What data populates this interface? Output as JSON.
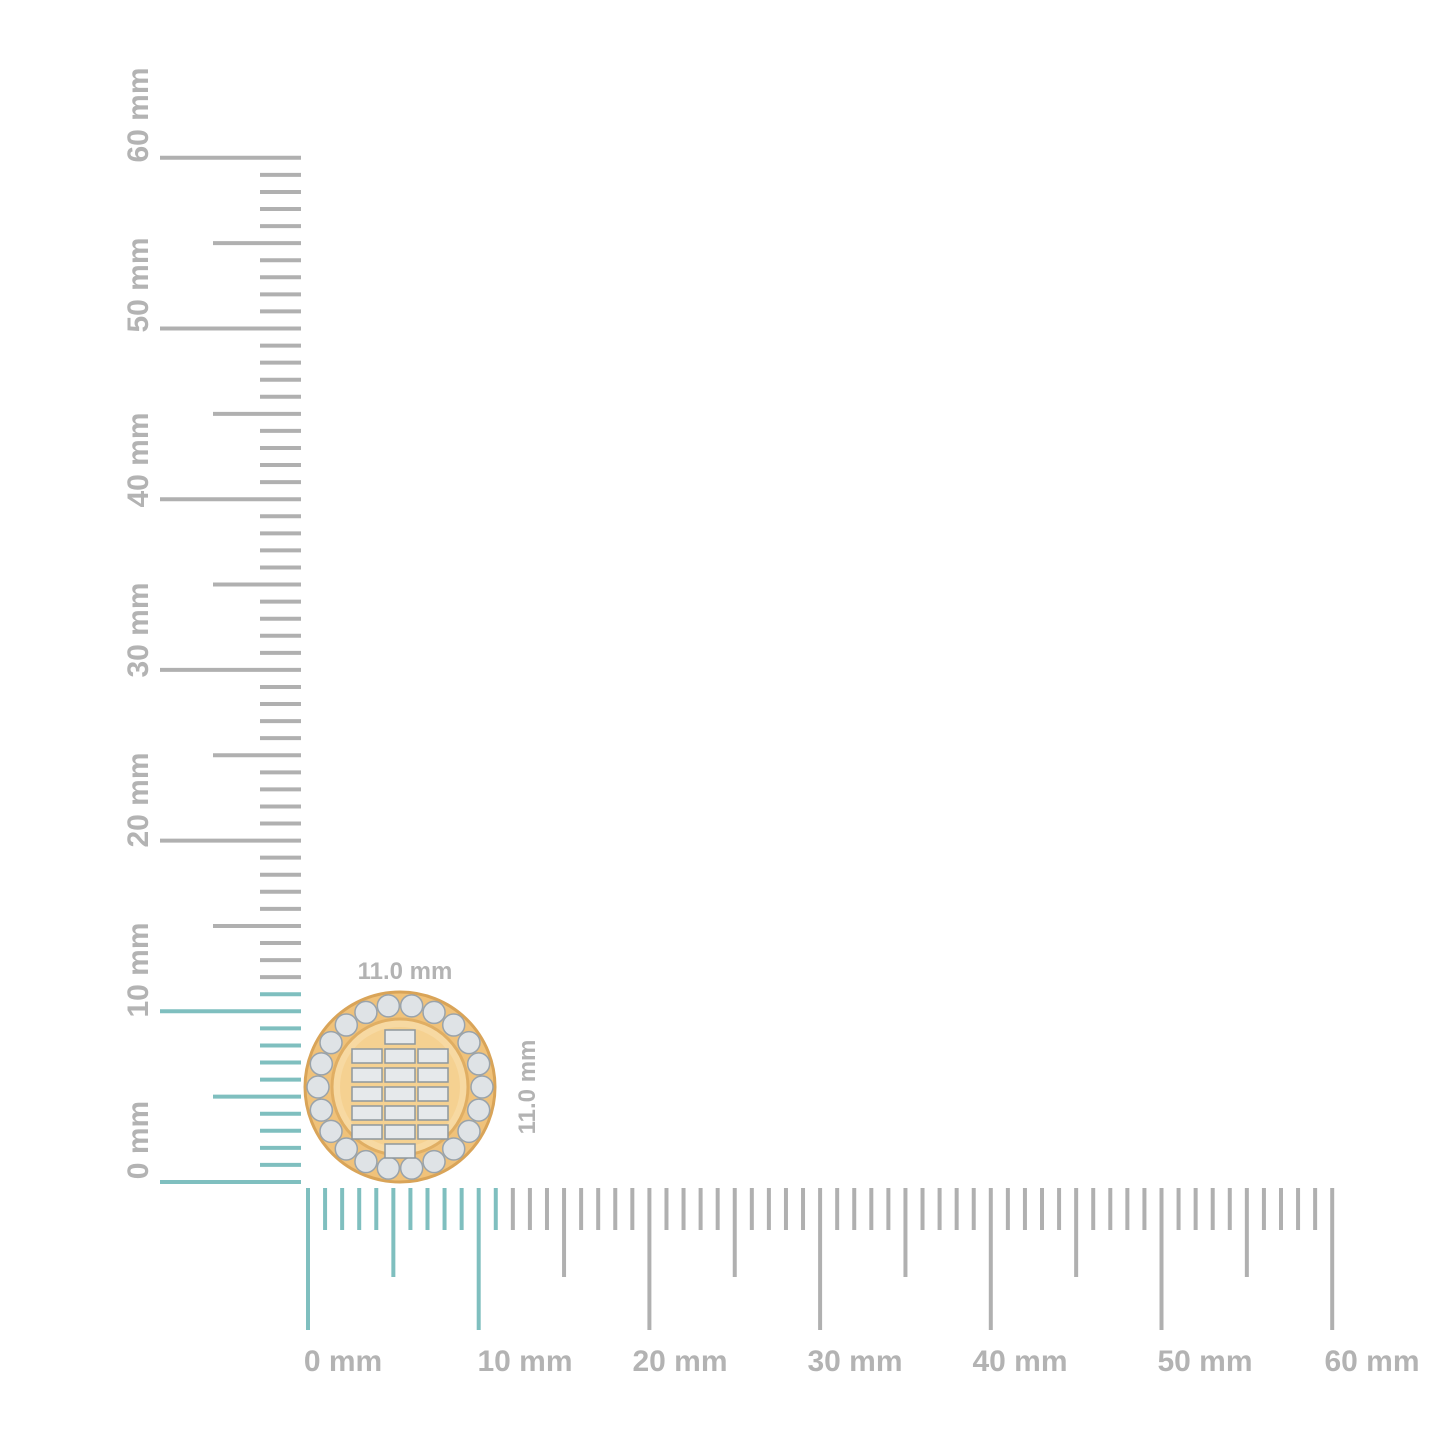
{
  "vertical_ruler": {
    "labels": [
      "0 mm",
      "10 mm",
      "20 mm",
      "30 mm",
      "40 mm",
      "50 mm",
      "60 mm"
    ]
  },
  "horizontal_ruler": {
    "labels": [
      "0 mm",
      "10 mm",
      "20 mm",
      "30 mm",
      "40 mm",
      "50 mm",
      "60 mm"
    ]
  },
  "dimensions": {
    "width": "11.0 mm",
    "height": "11.0 mm"
  }
}
